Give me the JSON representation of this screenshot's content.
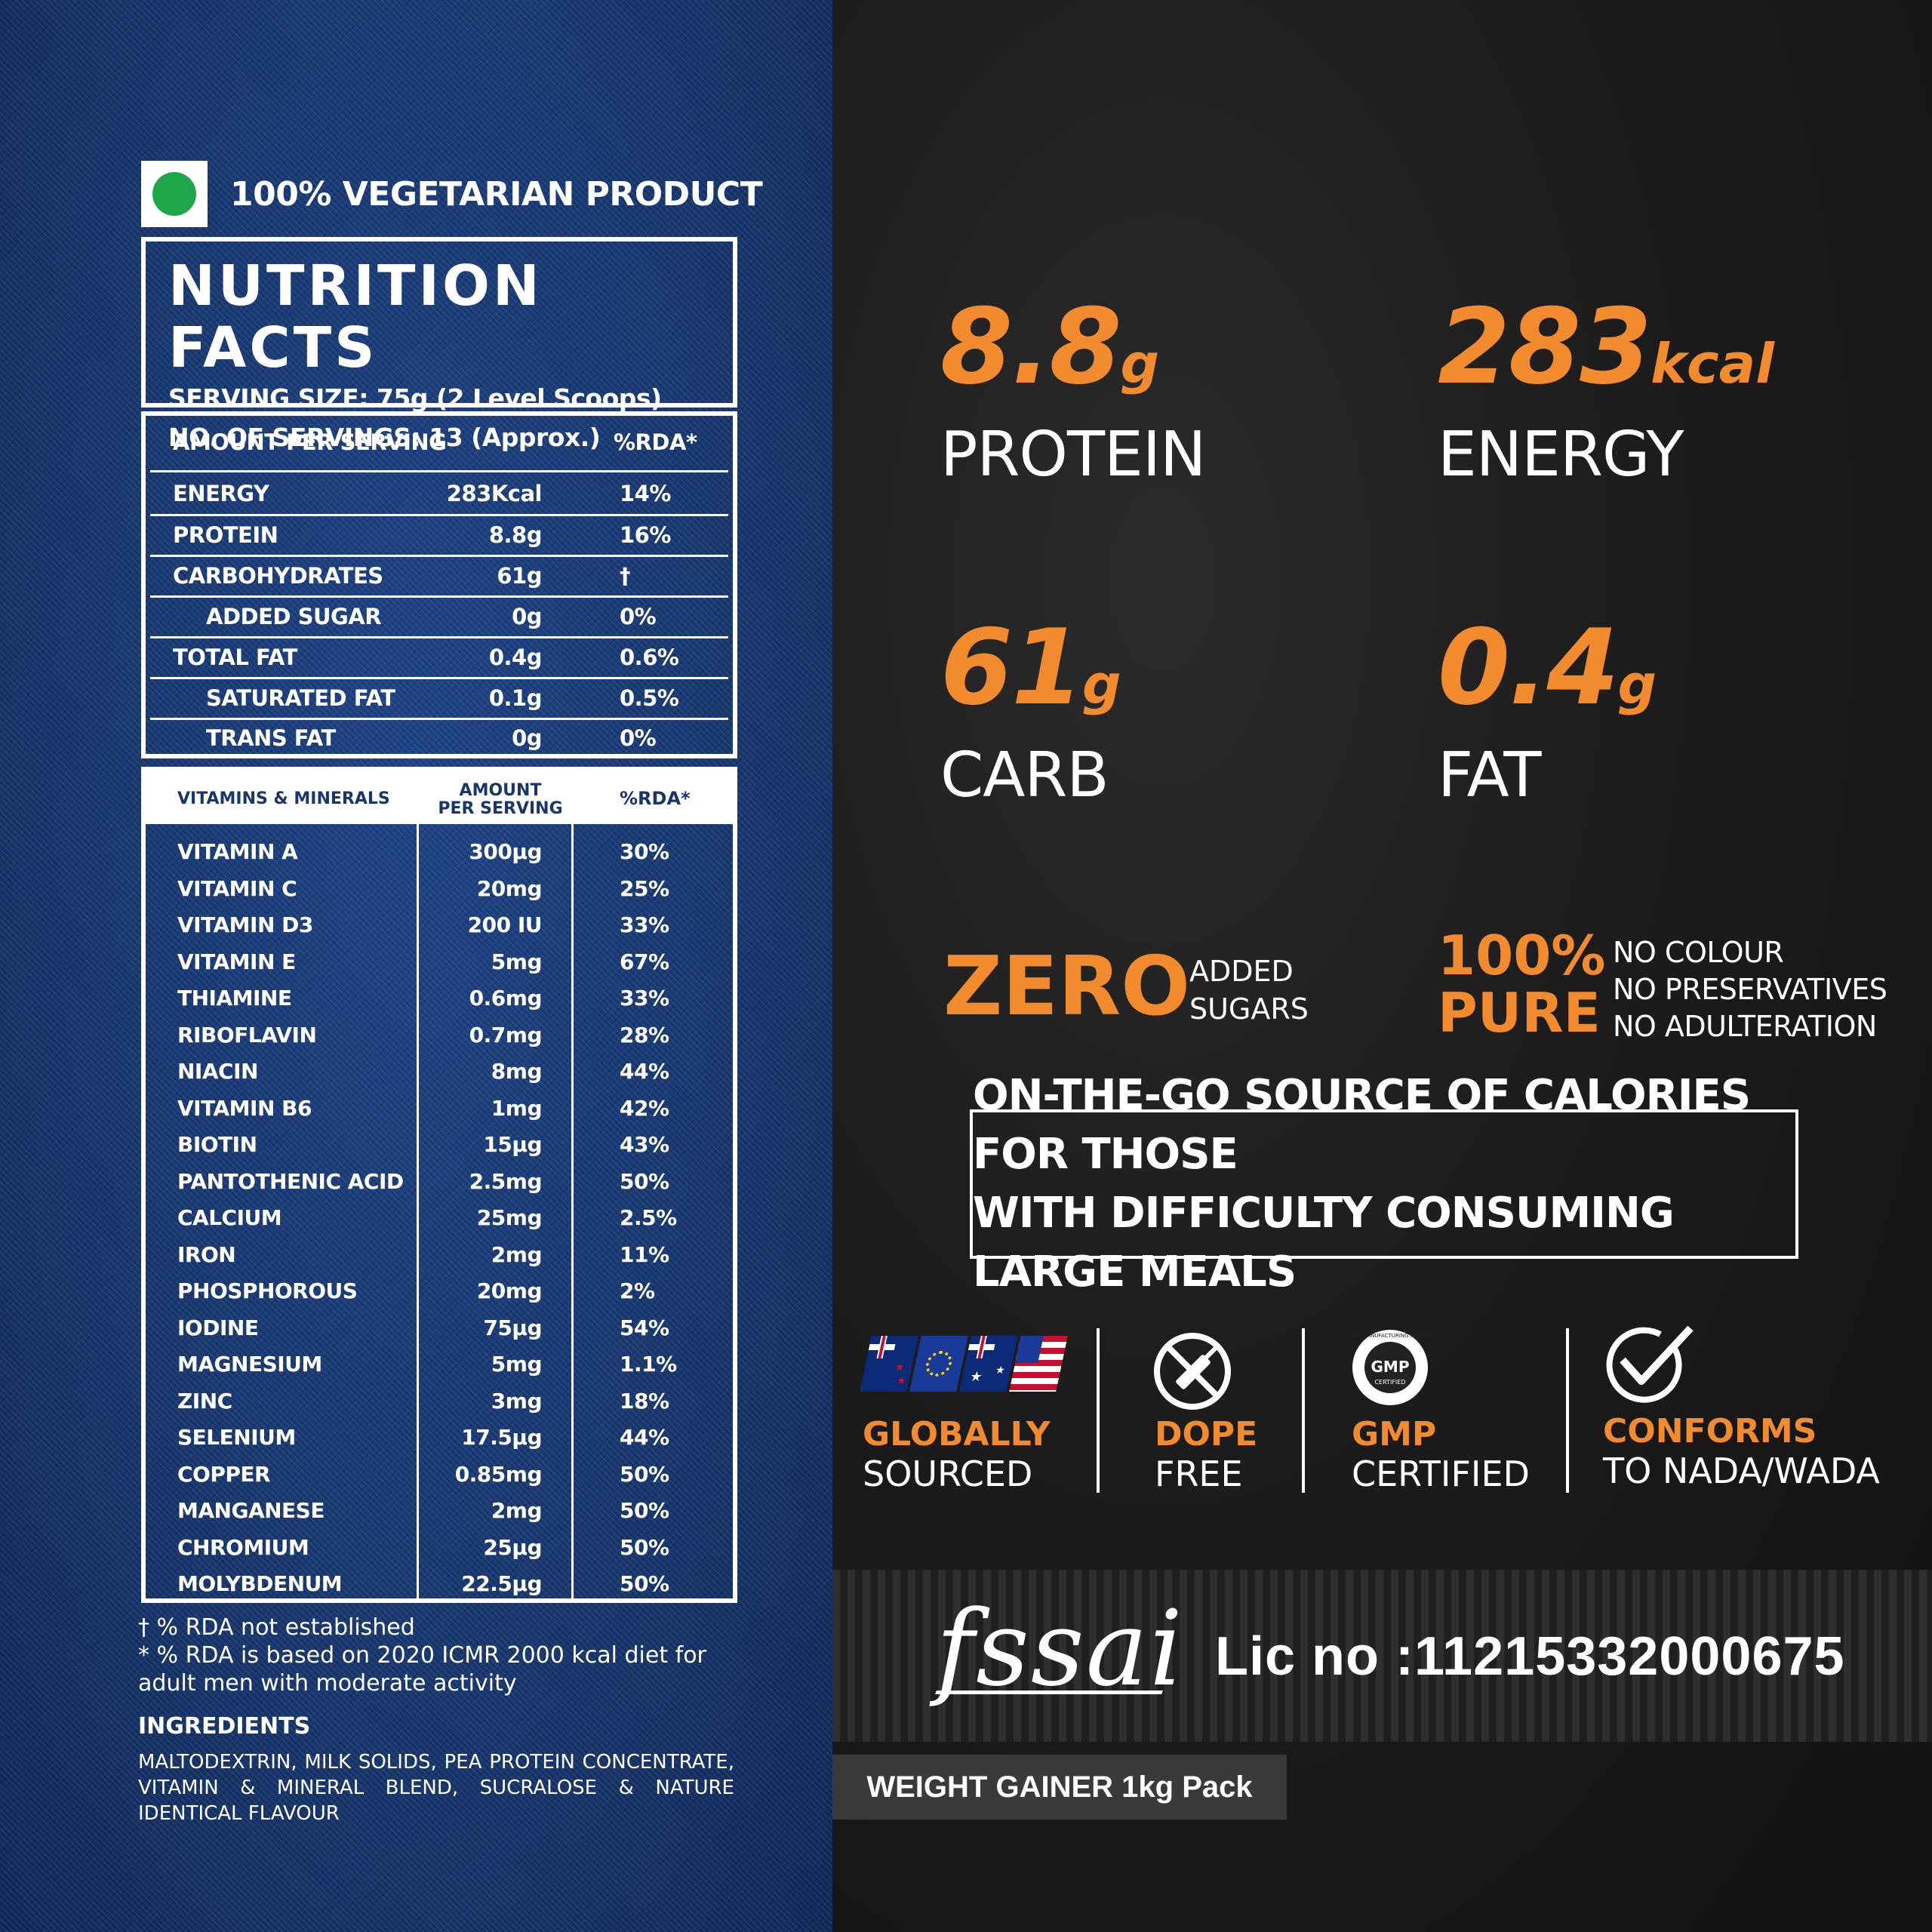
{
  "veg_label": "100% VEGETARIAN PRODUCT",
  "colors": {
    "accent": "#f28a2e",
    "denim": "#17366d",
    "veg_green": "#1ea64a"
  },
  "nutrition": {
    "title": "NUTRITION FACTS",
    "serving_size": "SERVING SIZE: 75g (2 Level Scoops)",
    "servings": "NO. OF SERVINGS: 13 (Approx.)",
    "header_amount": "AMOUNT PER SERVING",
    "header_rda": "%RDA*",
    "rows": [
      {
        "name": "ENERGY",
        "value": "283Kcal",
        "rda": "14%"
      },
      {
        "name": "PROTEIN",
        "value": "8.8g",
        "rda": "16%"
      },
      {
        "name": "CARBOHYDRATES",
        "value": "61g",
        "rda": "†"
      },
      {
        "name": "ADDED SUGAR",
        "value": "0g",
        "rda": "0%"
      },
      {
        "name": "TOTAL FAT",
        "value": "0.4g",
        "rda": "0.6%"
      },
      {
        "name": "SATURATED FAT",
        "value": "0.1g",
        "rda": "0.5%"
      },
      {
        "name": "TRANS FAT",
        "value": "0g",
        "rda": "0%"
      }
    ]
  },
  "vitamins": {
    "header_name": "VITAMINS & MINERALS",
    "header_amount_1": "AMOUNT",
    "header_amount_2": "PER SERVING",
    "header_rda": "%RDA*",
    "rows": [
      {
        "name": "VITAMIN A",
        "value": "300µg",
        "rda": "30%"
      },
      {
        "name": "VITAMIN C",
        "value": "20mg",
        "rda": "25%"
      },
      {
        "name": "VITAMIN D3",
        "value": "200 IU",
        "rda": "33%"
      },
      {
        "name": "VITAMIN E",
        "value": "5mg",
        "rda": "67%"
      },
      {
        "name": "THIAMINE",
        "value": "0.6mg",
        "rda": "33%"
      },
      {
        "name": "RIBOFLAVIN",
        "value": "0.7mg",
        "rda": "28%"
      },
      {
        "name": "NIACIN",
        "value": "8mg",
        "rda": "44%"
      },
      {
        "name": "VITAMIN B6",
        "value": "1mg",
        "rda": "42%"
      },
      {
        "name": "BIOTIN",
        "value": "15µg",
        "rda": "43%"
      },
      {
        "name": "PANTOTHENIC ACID",
        "value": "2.5mg",
        "rda": "50%"
      },
      {
        "name": "CALCIUM",
        "value": "25mg",
        "rda": "2.5%"
      },
      {
        "name": "IRON",
        "value": "2mg",
        "rda": "11%"
      },
      {
        "name": "PHOSPHOROUS",
        "value": "20mg",
        "rda": "2%"
      },
      {
        "name": "IODINE",
        "value": "75µg",
        "rda": "54%"
      },
      {
        "name": "MAGNESIUM",
        "value": "5mg",
        "rda": "1.1%"
      },
      {
        "name": "ZINC",
        "value": "3mg",
        "rda": "18%"
      },
      {
        "name": "SELENIUM",
        "value": "17.5µg",
        "rda": "44%"
      },
      {
        "name": "COPPER",
        "value": "0.85mg",
        "rda": "50%"
      },
      {
        "name": "MANGANESE",
        "value": "2mg",
        "rda": "50%"
      },
      {
        "name": "CHROMIUM",
        "value": "25µg",
        "rda": "50%"
      },
      {
        "name": "MOLYBDENUM",
        "value": "22.5µg",
        "rda": "50%"
      }
    ]
  },
  "notes": {
    "line1": "† % RDA not established",
    "line2": "* % RDA is based on 2020 ICMR 2000 kcal diet for adult men with moderate activity"
  },
  "ingredients": {
    "title": "INGREDIENTS",
    "text": "MALTODEXTRIN, MILK SOLIDS, PEA PROTEIN CONCENTRATE, VITAMIN & MINERAL BLEND, SUCRALOSE & NATURE IDENTICAL FLAVOUR"
  },
  "highlights": [
    {
      "value": "8.8",
      "unit": "g",
      "label": "PROTEIN"
    },
    {
      "value": "283",
      "unit": "kcal",
      "label": "ENERGY"
    },
    {
      "value": "61",
      "unit": "g",
      "label": "CARB"
    },
    {
      "value": "0.4",
      "unit": "g",
      "label": "FAT"
    }
  ],
  "zero": {
    "big": "ZERO",
    "sub1": "ADDED",
    "sub2": "SUGARS"
  },
  "pure": {
    "big1": "100%",
    "big2": "PURE",
    "sub1": "NO COLOUR",
    "sub2": "NO PRESERVATIVES",
    "sub3": "NO ADULTERATION"
  },
  "callout": {
    "line1": "ON-THE-GO SOURCE OF CALORIES FOR THOSE",
    "line2": "WITH DIFFICULTY CONSUMING LARGE MEALS"
  },
  "badges": [
    {
      "title": "GLOBALLY",
      "sub": "SOURCED",
      "icon": "flags-icon"
    },
    {
      "title": "DOPE",
      "sub": "FREE",
      "icon": "no-syringe-icon"
    },
    {
      "title": "GMP",
      "sub": "CERTIFIED",
      "icon": "gmp-seal-icon"
    },
    {
      "title": "CONFORMS",
      "sub": "TO NADA/WADA",
      "icon": "check-circle-icon"
    }
  ],
  "gmp_seal": {
    "center": "GMP",
    "ring": "GOOD MANUFACTURING PRACTICE",
    "inner": "CERTIFIED"
  },
  "fssai": {
    "logo": "fssai",
    "license": "Lic no :11215332000675"
  },
  "pack_label": "WEIGHT GAINER 1kg Pack"
}
